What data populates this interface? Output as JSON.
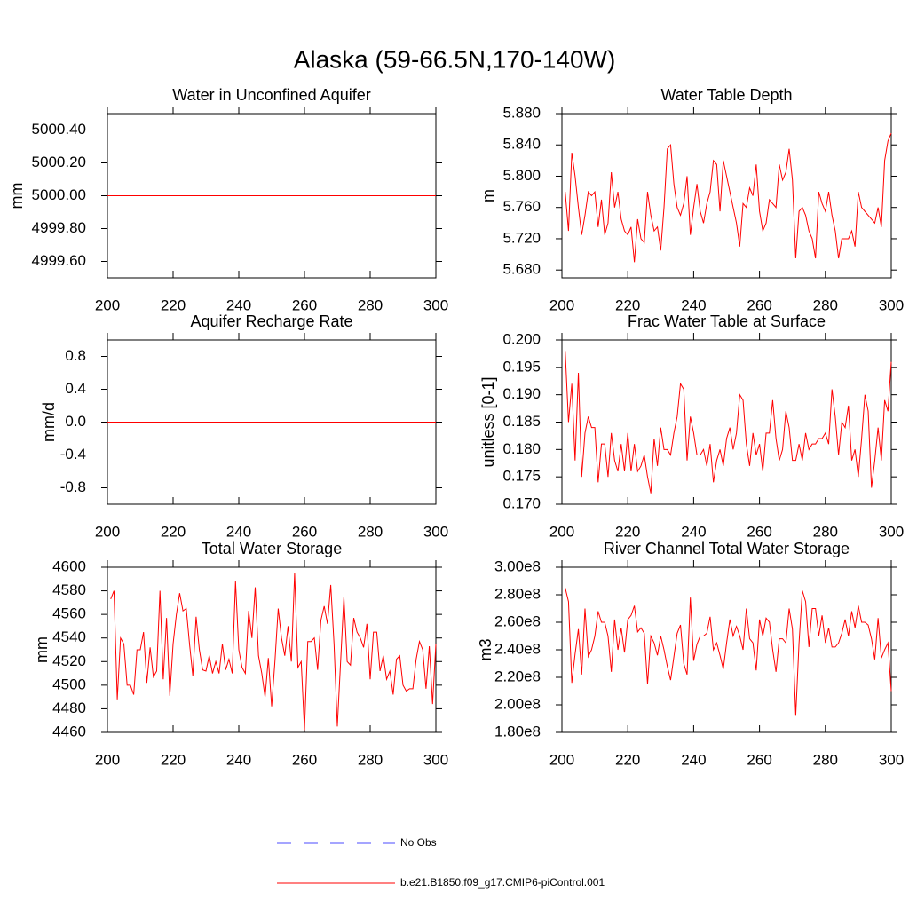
{
  "title": "Alaska (59-66.5N,170-140W)",
  "legend": [
    {
      "name": "No Obs",
      "color": "#4b4bff",
      "dashed": true
    },
    {
      "name": "b.e21.B1850.f09_g17.CMIP6-piControl.001",
      "color": "#ff0000",
      "dashed": false
    }
  ],
  "chart_data": [
    {
      "type": "line",
      "title": "Water in Unconfined Aquifer",
      "ylabel": "mm",
      "x": [
        200,
        300
      ],
      "series": [
        {
          "color": "#ff0000",
          "values": [
            5000,
            5000
          ]
        }
      ],
      "xlim": [
        200,
        300
      ],
      "xticks": [
        200,
        220,
        240,
        260,
        280,
        300
      ],
      "ylim": [
        4999.5,
        5000.5
      ],
      "yticks": [
        {
          "value": 4999.6,
          "label": "4999.60"
        },
        {
          "value": 4999.8,
          "label": "4999.80"
        },
        {
          "value": 5000,
          "label": "5000.00"
        },
        {
          "value": 5000.2,
          "label": "5000.20"
        },
        {
          "value": 5000.4,
          "label": "5000.40"
        }
      ]
    },
    {
      "type": "line",
      "title": "Water Table Depth",
      "ylabel": "m",
      "x": [
        201,
        202,
        203,
        204,
        205,
        206,
        207,
        208,
        209,
        210,
        211,
        212,
        213,
        214,
        215,
        216,
        217,
        218,
        219,
        220,
        221,
        222,
        223,
        224,
        225,
        226,
        227,
        228,
        229,
        230,
        231,
        232,
        233,
        234,
        235,
        236,
        237,
        238,
        239,
        240,
        241,
        242,
        243,
        244,
        245,
        246,
        247,
        248,
        249,
        250,
        251,
        252,
        253,
        254,
        255,
        256,
        257,
        258,
        259,
        260,
        261,
        262,
        263,
        264,
        265,
        266,
        267,
        268,
        269,
        270,
        271,
        272,
        273,
        274,
        275,
        276,
        277,
        278,
        279,
        280,
        281,
        282,
        283,
        284,
        285,
        286,
        287,
        288,
        289,
        290,
        291,
        292,
        293,
        294,
        295,
        296,
        297,
        298,
        299,
        300
      ],
      "series": [
        {
          "color": "#ff0000",
          "values": [
            5.78,
            5.73,
            5.83,
            5.8,
            5.76,
            5.725,
            5.75,
            5.78,
            5.775,
            5.78,
            5.735,
            5.77,
            5.725,
            5.74,
            5.805,
            5.76,
            5.78,
            5.745,
            5.73,
            5.725,
            5.735,
            5.69,
            5.745,
            5.72,
            5.715,
            5.78,
            5.75,
            5.73,
            5.735,
            5.705,
            5.76,
            5.835,
            5.84,
            5.79,
            5.76,
            5.75,
            5.765,
            5.8,
            5.725,
            5.76,
            5.79,
            5.755,
            5.74,
            5.765,
            5.78,
            5.82,
            5.815,
            5.755,
            5.82,
            5.8,
            5.78,
            5.76,
            5.74,
            5.71,
            5.765,
            5.76,
            5.785,
            5.775,
            5.815,
            5.755,
            5.73,
            5.74,
            5.77,
            5.765,
            5.76,
            5.815,
            5.795,
            5.805,
            5.835,
            5.795,
            5.695,
            5.755,
            5.76,
            5.75,
            5.73,
            5.72,
            5.695,
            5.78,
            5.765,
            5.755,
            5.78,
            5.75,
            5.73,
            5.695,
            5.72,
            5.72,
            5.72,
            5.73,
            5.71,
            5.78,
            5.76,
            5.755,
            5.75,
            5.745,
            5.74,
            5.76,
            5.735,
            5.82,
            5.845,
            5.855
          ]
        }
      ],
      "xlim": [
        200,
        300
      ],
      "xticks": [
        200,
        220,
        240,
        260,
        280,
        300
      ],
      "ylim": [
        5.67,
        5.88
      ],
      "yticks": [
        {
          "value": 5.68,
          "label": "5.680"
        },
        {
          "value": 5.72,
          "label": "5.720"
        },
        {
          "value": 5.76,
          "label": "5.760"
        },
        {
          "value": 5.8,
          "label": "5.800"
        },
        {
          "value": 5.84,
          "label": "5.840"
        },
        {
          "value": 5.88,
          "label": "5.880"
        }
      ]
    },
    {
      "type": "line",
      "title": "Aquifer Recharge Rate",
      "ylabel": "mm/d",
      "x": [
        200,
        300
      ],
      "series": [
        {
          "color": "#ff0000",
          "values": [
            0,
            0
          ]
        }
      ],
      "xlim": [
        200,
        300
      ],
      "xticks": [
        200,
        220,
        240,
        260,
        280,
        300
      ],
      "ylim": [
        -1,
        1
      ],
      "yticks": [
        {
          "value": -0.8,
          "label": "-0.8"
        },
        {
          "value": -0.4,
          "label": "-0.4"
        },
        {
          "value": 0,
          "label": "0.0"
        },
        0.4,
        0.8
      ]
    },
    {
      "type": "line",
      "title": "Frac Water Table at Surface",
      "ylabel": "unitless [0-1]",
      "x": [
        201,
        202,
        203,
        204,
        205,
        206,
        207,
        208,
        209,
        210,
        211,
        212,
        213,
        214,
        215,
        216,
        217,
        218,
        219,
        220,
        221,
        222,
        223,
        224,
        225,
        226,
        227,
        228,
        229,
        230,
        231,
        232,
        233,
        234,
        235,
        236,
        237,
        238,
        239,
        240,
        241,
        242,
        243,
        244,
        245,
        246,
        247,
        248,
        249,
        250,
        251,
        252,
        253,
        254,
        255,
        256,
        257,
        258,
        259,
        260,
        261,
        262,
        263,
        264,
        265,
        266,
        267,
        268,
        269,
        270,
        271,
        272,
        273,
        274,
        275,
        276,
        277,
        278,
        279,
        280,
        281,
        282,
        283,
        284,
        285,
        286,
        287,
        288,
        289,
        290,
        291,
        292,
        293,
        294,
        295,
        296,
        297,
        298,
        299,
        300
      ],
      "series": [
        {
          "color": "#ff0000",
          "values": [
            0.198,
            0.185,
            0.192,
            0.178,
            0.194,
            0.175,
            0.183,
            0.186,
            0.184,
            0.184,
            0.174,
            0.181,
            0.181,
            0.175,
            0.183,
            0.178,
            0.176,
            0.181,
            0.176,
            0.183,
            0.176,
            0.181,
            0.176,
            0.177,
            0.179,
            0.175,
            0.172,
            0.182,
            0.177,
            0.184,
            0.18,
            0.18,
            0.179,
            0.183,
            0.186,
            0.192,
            0.191,
            0.178,
            0.186,
            0.183,
            0.179,
            0.179,
            0.18,
            0.177,
            0.181,
            0.174,
            0.178,
            0.18,
            0.177,
            0.182,
            0.184,
            0.18,
            0.183,
            0.19,
            0.189,
            0.181,
            0.177,
            0.183,
            0.179,
            0.181,
            0.176,
            0.183,
            0.183,
            0.189,
            0.182,
            0.178,
            0.18,
            0.187,
            0.184,
            0.178,
            0.178,
            0.181,
            0.178,
            0.183,
            0.18,
            0.181,
            0.181,
            0.182,
            0.182,
            0.183,
            0.181,
            0.191,
            0.186,
            0.179,
            0.185,
            0.184,
            0.188,
            0.178,
            0.18,
            0.175,
            0.182,
            0.19,
            0.187,
            0.173,
            0.178,
            0.184,
            0.178,
            0.189,
            0.187,
            0.196
          ]
        }
      ],
      "xlim": [
        200,
        300
      ],
      "xticks": [
        200,
        220,
        240,
        260,
        280,
        300
      ],
      "ylim": [
        0.17,
        0.2
      ],
      "yticks": [
        {
          "value": 0.17,
          "label": "0.170"
        },
        0.175,
        {
          "value": 0.18,
          "label": "0.180"
        },
        0.185,
        {
          "value": 0.19,
          "label": "0.190"
        },
        0.195,
        {
          "value": 0.2,
          "label": "0.200"
        }
      ]
    },
    {
      "type": "line",
      "title": "Total Water Storage",
      "ylabel": "mm",
      "x": [
        201,
        202,
        203,
        204,
        205,
        206,
        207,
        208,
        209,
        210,
        211,
        212,
        213,
        214,
        215,
        216,
        217,
        218,
        219,
        220,
        221,
        222,
        223,
        224,
        225,
        226,
        227,
        228,
        229,
        230,
        231,
        232,
        233,
        234,
        235,
        236,
        237,
        238,
        239,
        240,
        241,
        242,
        243,
        244,
        245,
        246,
        247,
        248,
        249,
        250,
        251,
        252,
        253,
        254,
        255,
        256,
        257,
        258,
        259,
        260,
        261,
        262,
        263,
        264,
        265,
        266,
        267,
        268,
        269,
        270,
        271,
        272,
        273,
        274,
        275,
        276,
        277,
        278,
        279,
        280,
        281,
        282,
        283,
        284,
        285,
        286,
        287,
        288,
        289,
        290,
        291,
        292,
        293,
        294,
        295,
        296,
        297,
        298,
        299,
        300
      ],
      "series": [
        {
          "color": "#ff0000",
          "values": [
            4573,
            4580,
            4488,
            4540,
            4535,
            4500,
            4500,
            4492,
            4530,
            4530,
            4545,
            4502,
            4532,
            4507,
            4512,
            4580,
            4505,
            4557,
            4491,
            4535,
            4560,
            4578,
            4563,
            4565,
            4535,
            4508,
            4558,
            4530,
            4513,
            4512,
            4525,
            4510,
            4520,
            4510,
            4535,
            4513,
            4522,
            4510,
            4588,
            4530,
            4515,
            4510,
            4563,
            4540,
            4583,
            4525,
            4510,
            4490,
            4523,
            4482,
            4520,
            4565,
            4540,
            4525,
            4550,
            4520,
            4595,
            4515,
            4520,
            4462,
            4537,
            4537,
            4540,
            4513,
            4555,
            4567,
            4552,
            4585,
            4535,
            4465,
            4520,
            4575,
            4520,
            4517,
            4557,
            4545,
            4540,
            4532,
            4552,
            4505,
            4545,
            4545,
            4512,
            4525,
            4505,
            4512,
            4492,
            4522,
            4525,
            4500,
            4495,
            4497,
            4497,
            4522,
            4537,
            4530,
            4497,
            4533,
            4484,
            4535
          ]
        }
      ],
      "xlim": [
        200,
        300
      ],
      "xticks": [
        200,
        220,
        240,
        260,
        280,
        300
      ],
      "ylim": [
        4460,
        4600
      ],
      "yticks": [
        4460,
        4480,
        4500,
        4520,
        4540,
        4560,
        4580,
        4600
      ]
    },
    {
      "type": "line",
      "title": "River Channel Total Water Storage",
      "ylabel": "m3",
      "x": [
        201,
        202,
        203,
        204,
        205,
        206,
        207,
        208,
        209,
        210,
        211,
        212,
        213,
        214,
        215,
        216,
        217,
        218,
        219,
        220,
        221,
        222,
        223,
        224,
        225,
        226,
        227,
        228,
        229,
        230,
        231,
        232,
        233,
        234,
        235,
        236,
        237,
        238,
        239,
        240,
        241,
        242,
        243,
        244,
        245,
        246,
        247,
        248,
        249,
        250,
        251,
        252,
        253,
        254,
        255,
        256,
        257,
        258,
        259,
        260,
        261,
        262,
        263,
        264,
        265,
        266,
        267,
        268,
        269,
        270,
        271,
        272,
        273,
        274,
        275,
        276,
        277,
        278,
        279,
        280,
        281,
        282,
        283,
        284,
        285,
        286,
        287,
        288,
        289,
        290,
        291,
        292,
        293,
        294,
        295,
        296,
        297,
        298,
        299,
        300
      ],
      "series": [
        {
          "color": "#ff0000",
          "values": [
            285000000.0,
            275000000.0,
            216000000.0,
            237000000.0,
            255000000.0,
            222000000.0,
            270000000.0,
            235000000.0,
            240000000.0,
            250000000.0,
            268000000.0,
            260000000.0,
            260000000.0,
            250000000.0,
            224000000.0,
            262000000.0,
            240000000.0,
            256000000.0,
            238000000.0,
            262000000.0,
            265000000.0,
            272000000.0,
            253000000.0,
            256000000.0,
            252000000.0,
            215000000.0,
            250000000.0,
            245000000.0,
            236000000.0,
            250000000.0,
            240000000.0,
            228000000.0,
            218000000.0,
            235000000.0,
            252000000.0,
            258000000.0,
            230000000.0,
            222000000.0,
            278000000.0,
            232000000.0,
            244000000.0,
            250000000.0,
            250000000.0,
            252000000.0,
            264000000.0,
            240000000.0,
            245000000.0,
            236000000.0,
            226000000.0,
            245000000.0,
            262000000.0,
            250000000.0,
            257000000.0,
            250000000.0,
            240000000.0,
            270000000.0,
            248000000.0,
            245000000.0,
            225000000.0,
            262000000.0,
            250000000.0,
            263000000.0,
            260000000.0,
            240000000.0,
            224000000.0,
            248000000.0,
            248000000.0,
            245000000.0,
            270000000.0,
            255000000.0,
            192000000.0,
            245000000.0,
            283000000.0,
            275000000.0,
            242000000.0,
            270000000.0,
            270000000.0,
            250000000.0,
            265000000.0,
            245000000.0,
            256000000.0,
            242000000.0,
            242000000.0,
            245000000.0,
            252000000.0,
            262000000.0,
            250000000.0,
            268000000.0,
            256000000.0,
            272000000.0,
            260000000.0,
            260000000.0,
            258000000.0,
            248000000.0,
            233000000.0,
            263000000.0,
            234000000.0,
            240000000.0,
            245000000.0,
            210000000.0
          ]
        }
      ],
      "xlim": [
        200,
        300
      ],
      "xticks": [
        200,
        220,
        240,
        260,
        280,
        300
      ],
      "ylim": [
        180000000.0,
        300000000.0
      ],
      "yticks": [
        {
          "value": 180000000.0,
          "label": "1.80e8"
        },
        {
          "value": 200000000.0,
          "label": "2.00e8"
        },
        {
          "value": 220000000.0,
          "label": "2.20e8"
        },
        {
          "value": 240000000.0,
          "label": "2.40e8"
        },
        {
          "value": 260000000.0,
          "label": "2.60e8"
        },
        {
          "value": 280000000.0,
          "label": "2.80e8"
        },
        {
          "value": 300000000.0,
          "label": "3.00e8"
        }
      ]
    }
  ]
}
